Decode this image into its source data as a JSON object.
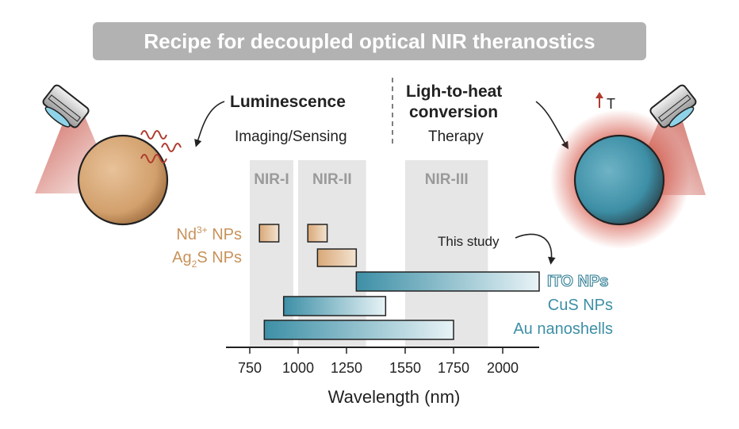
{
  "title": "Recipe for decoupled optical NIR theranostics",
  "left_panel": {
    "heading": "Luminescence",
    "subheading": "Imaging/Sensing"
  },
  "right_panel": {
    "heading_line1": "Ligh-to-heat",
    "heading_line2": "conversion",
    "subheading": "Therapy",
    "temperature_label": "T"
  },
  "note_label": "This study",
  "windows": [
    {
      "label": "NIR-I",
      "range": [
        750,
        975
      ]
    },
    {
      "label": "NIR-II",
      "range": [
        1000,
        1350
      ]
    },
    {
      "label": "NIR-III",
      "range": [
        1550,
        1925
      ]
    }
  ],
  "chart_data": {
    "type": "range-bar",
    "xlabel": "Wavelength (nm)",
    "ticks": [
      750,
      1000,
      1250,
      1550,
      1750,
      2000
    ],
    "xlim": [
      600,
      2150
    ],
    "series": [
      {
        "name": "Nd³⁺ NPs",
        "label_main": "Nd",
        "label_sup": "3+",
        "label_rest": " NPs",
        "color": "#d9a877",
        "ranges": [
          [
            800,
            900
          ],
          [
            1050,
            1150
          ]
        ]
      },
      {
        "name": "Ag₂S NPs",
        "label_main": "Ag",
        "label_sub": "2",
        "label_rest": "S NPs",
        "color": "#d9a877",
        "ranges": [
          [
            1100,
            1300
          ]
        ]
      },
      {
        "name": "ITO NPs",
        "color": "#3d8fa6",
        "ranges": [
          [
            1300,
            2150
          ]
        ]
      },
      {
        "name": "CuS NPs",
        "color": "#3d8fa6",
        "ranges": [
          [
            925,
            1450
          ]
        ]
      },
      {
        "name": "Au nanoshells",
        "color": "#3d8fa6",
        "ranges": [
          [
            825,
            1750
          ]
        ]
      }
    ]
  },
  "colors": {
    "banner": "#b2b2b2",
    "window": "#e6e6e6",
    "tan": "#d9a877",
    "teal": "#3d8fa6",
    "heat": "#c0392b"
  },
  "icons": [
    "laser-head-icon",
    "emission-wave-icon",
    "temperature-up-arrow-icon",
    "curved-arrow-icon"
  ]
}
